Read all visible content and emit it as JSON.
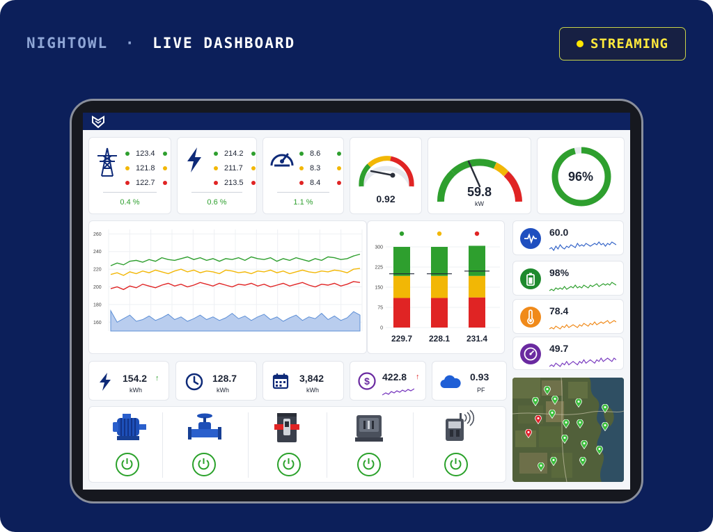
{
  "brand": {
    "name": "NIGHTOWL",
    "sep": "·",
    "title": "LIVE DASHBOARD"
  },
  "status": {
    "label": "STREAMING",
    "color": "#ffe600"
  },
  "colors": {
    "green": "#2e9f2e",
    "yellow": "#f2b705",
    "red": "#e02424",
    "navy": "#0e2a78"
  },
  "metrics": [
    {
      "icon": "transmission-tower-icon",
      "values": [
        "123.4",
        "121.8",
        "122.7"
      ],
      "pct": "0.4 %"
    },
    {
      "icon": "lightning-bolt-icon",
      "values": [
        "214.2",
        "211.7",
        "213.5"
      ],
      "pct": "0.6 %"
    },
    {
      "icon": "speedometer-icon",
      "values": [
        "8.6",
        "8.3",
        "8.4"
      ],
      "pct": "1.1 %"
    }
  ],
  "gauges": {
    "power_factor": {
      "value": "0.92",
      "fraction": 0.92
    },
    "power": {
      "value": "59.8",
      "unit": "kW",
      "fraction": 0.62
    },
    "ring": {
      "value": "96%",
      "fraction": 0.96
    }
  },
  "chart_data": [
    {
      "type": "line",
      "y_ticks": [
        "260",
        "240",
        "220",
        "200",
        "180",
        "160"
      ],
      "ylim": [
        150,
        265
      ],
      "series": [
        {
          "color": "#2e9f2e",
          "values": [
            224,
            227,
            225,
            229,
            230,
            228,
            231,
            229,
            233,
            231,
            230,
            232,
            234,
            231,
            233,
            230,
            232,
            229,
            232,
            231,
            233,
            230,
            234,
            232,
            231,
            233,
            229,
            232,
            230,
            233,
            231,
            229,
            232,
            230,
            234,
            233,
            231,
            232,
            235,
            237
          ]
        },
        {
          "color": "#f2b705",
          "values": [
            214,
            216,
            213,
            217,
            215,
            218,
            216,
            219,
            217,
            215,
            218,
            220,
            217,
            219,
            216,
            218,
            217,
            215,
            219,
            218,
            216,
            217,
            215,
            218,
            217,
            219,
            216,
            218,
            215,
            217,
            219,
            217,
            216,
            218,
            217,
            219,
            218,
            216,
            220,
            221
          ]
        },
        {
          "color": "#e02424",
          "values": [
            198,
            200,
            197,
            201,
            199,
            203,
            201,
            199,
            202,
            204,
            201,
            203,
            200,
            202,
            205,
            203,
            201,
            204,
            202,
            200,
            203,
            202,
            204,
            201,
            203,
            200,
            202,
            204,
            201,
            203,
            205,
            202,
            200,
            203,
            202,
            204,
            201,
            203,
            206,
            205
          ]
        }
      ],
      "area_color": "#5d8fd6",
      "area_values": [
        173,
        160,
        164,
        168,
        161,
        163,
        167,
        162,
        165,
        169,
        163,
        166,
        161,
        164,
        168,
        163,
        166,
        162,
        165,
        170,
        164,
        167,
        162,
        166,
        169,
        163,
        166,
        161,
        165,
        168,
        162,
        166,
        164,
        170,
        163,
        167,
        162,
        165,
        172,
        168
      ]
    },
    {
      "type": "bar",
      "stacked": true,
      "y_ticks": [
        "300",
        "225",
        "150",
        "75",
        "0"
      ],
      "ylim": [
        0,
        300
      ],
      "categories": [
        "229.7",
        "228.1",
        "231.4"
      ],
      "marker_colors": [
        "#2e9f2e",
        "#f2b705",
        "#e02424"
      ],
      "series": [
        {
          "color": "#e02424",
          "values": [
            110,
            110,
            112
          ]
        },
        {
          "color": "#f2b705",
          "values": [
            82,
            82,
            80
          ]
        },
        {
          "color": "#2e9f2e",
          "values": [
            108,
            108,
            112
          ]
        }
      ],
      "marker_line": [
        200,
        200,
        210
      ]
    }
  ],
  "side": [
    {
      "icon": "heartbeat-icon",
      "value": "60.0",
      "icon_color": "#1f4fbf",
      "line_color": "#3464c8",
      "spark": [
        5,
        6,
        4,
        7,
        5,
        8,
        6,
        5,
        7,
        6,
        8,
        7,
        6,
        9,
        7,
        8,
        7,
        9,
        8,
        7,
        8,
        9,
        8,
        10,
        8,
        9,
        7,
        9,
        8,
        10,
        9,
        8
      ]
    },
    {
      "icon": "battery-icon",
      "value": "98%",
      "icon_color": "#1f8a2e",
      "line_color": "#2e9f2e",
      "spark": [
        4,
        5,
        4,
        6,
        5,
        6,
        5,
        7,
        5,
        6,
        7,
        6,
        8,
        6,
        7,
        6,
        8,
        7,
        6,
        8,
        7,
        8,
        9,
        7,
        8,
        9,
        8,
        9,
        8,
        10,
        9,
        8
      ]
    },
    {
      "icon": "thermometer-icon",
      "value": "78.4",
      "icon_color": "#f08a1a",
      "line_color": "#f08a1a",
      "spark": [
        4,
        5,
        4,
        6,
        5,
        4,
        6,
        5,
        7,
        5,
        6,
        7,
        6,
        5,
        7,
        6,
        8,
        7,
        6,
        8,
        7,
        9,
        7,
        8,
        9,
        8,
        9,
        10,
        8,
        9,
        10,
        9
      ]
    },
    {
      "icon": "gauge-icon",
      "value": "49.7",
      "icon_color": "#6a2aa0",
      "line_color": "#7a3cc0",
      "spark": [
        5,
        6,
        5,
        7,
        6,
        5,
        7,
        6,
        8,
        6,
        7,
        8,
        7,
        6,
        8,
        7,
        9,
        7,
        8,
        9,
        8,
        7,
        9,
        8,
        10,
        8,
        9,
        10,
        9,
        8,
        10,
        9
      ]
    }
  ],
  "stats": [
    {
      "icon": "lightning-bolt-icon",
      "value": "154.2",
      "unit": "kWh",
      "trend": "↑",
      "trend_color": "#2e9f2e"
    },
    {
      "icon": "clock-icon",
      "value": "128.7",
      "unit": "kWh"
    },
    {
      "icon": "calendar-icon",
      "value": "3,842",
      "unit": "kWh"
    },
    {
      "icon": "dollar-icon",
      "value": "422.8",
      "trend": "↑",
      "trend_color": "#e02424"
    },
    {
      "icon": "cloud-icon",
      "value": "0.93",
      "unit": "PF"
    }
  ],
  "devices": [
    {
      "icon": "electric-motor-icon"
    },
    {
      "icon": "valve-icon"
    },
    {
      "icon": "breaker-switch-icon"
    },
    {
      "icon": "switchgear-icon"
    },
    {
      "icon": "smart-meter-icon"
    }
  ],
  "map": {
    "pin_colors": [
      "#3cbe3c",
      "#e0242f"
    ]
  }
}
